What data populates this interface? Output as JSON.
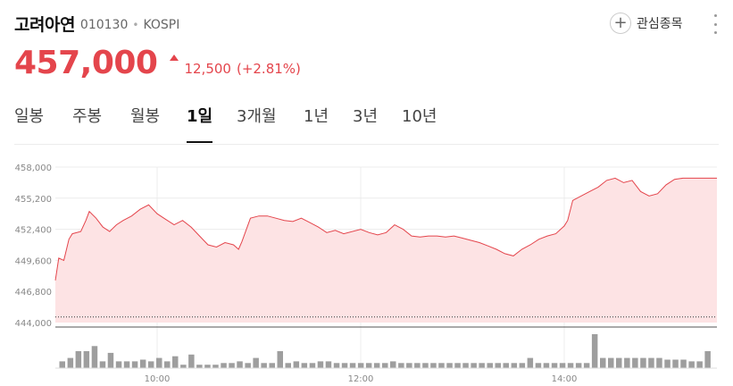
{
  "stock": {
    "name": "고려아연",
    "code": "010130",
    "separator": "•",
    "market": "KOSPI"
  },
  "watch": {
    "icon": "plus-icon",
    "label": "관심종목"
  },
  "quote": {
    "price": "457,000",
    "change": "12,500",
    "change_pct": "(+2.81%)",
    "direction": "up",
    "color": "#e4454c"
  },
  "tabs": [
    {
      "label": "일봉",
      "active": false
    },
    {
      "label": "주봉",
      "active": false
    },
    {
      "label": "월봉",
      "active": false
    },
    {
      "label": "1일",
      "active": true
    },
    {
      "label": "3개월",
      "active": false
    },
    {
      "label": "1년",
      "active": false
    },
    {
      "label": "3년",
      "active": false
    },
    {
      "label": "10년",
      "active": false
    }
  ],
  "chart_data": {
    "type": "area",
    "y_tick_labels": [
      "458,000",
      "455,200",
      "452,400",
      "449,600",
      "446,800",
      "444,000"
    ],
    "x_tick_labels": [
      "10:00",
      "12:00",
      "14:00"
    ],
    "ylim": [
      444000,
      458000
    ],
    "x_range": [
      "09:00",
      "15:30"
    ],
    "line_color": "#e4454c",
    "fill_color": "#fde3e4",
    "reference_line": 444500,
    "price_points": [
      [
        "09:00",
        447800
      ],
      [
        "09:02",
        449800
      ],
      [
        "09:05",
        449600
      ],
      [
        "09:08",
        451500
      ],
      [
        "09:10",
        452000
      ],
      [
        "09:15",
        452200
      ],
      [
        "09:18",
        453200
      ],
      [
        "09:20",
        454000
      ],
      [
        "09:24",
        453400
      ],
      [
        "09:28",
        452600
      ],
      [
        "09:32",
        452200
      ],
      [
        "09:36",
        452800
      ],
      [
        "09:40",
        453200
      ],
      [
        "09:45",
        453600
      ],
      [
        "09:50",
        454200
      ],
      [
        "09:55",
        454600
      ],
      [
        "10:00",
        453800
      ],
      [
        "10:05",
        453300
      ],
      [
        "10:10",
        452800
      ],
      [
        "10:15",
        453200
      ],
      [
        "10:20",
        452600
      ],
      [
        "10:25",
        451800
      ],
      [
        "10:30",
        451000
      ],
      [
        "10:35",
        450800
      ],
      [
        "10:40",
        451200
      ],
      [
        "10:45",
        451000
      ],
      [
        "10:48",
        450600
      ],
      [
        "10:50",
        451300
      ],
      [
        "10:55",
        453400
      ],
      [
        "11:00",
        453600
      ],
      [
        "11:05",
        453600
      ],
      [
        "11:10",
        453400
      ],
      [
        "11:15",
        453200
      ],
      [
        "11:20",
        453100
      ],
      [
        "11:25",
        453400
      ],
      [
        "11:30",
        453000
      ],
      [
        "11:35",
        452600
      ],
      [
        "11:40",
        452100
      ],
      [
        "11:45",
        452300
      ],
      [
        "11:50",
        452000
      ],
      [
        "12:00",
        452400
      ],
      [
        "12:05",
        452100
      ],
      [
        "12:10",
        451900
      ],
      [
        "12:15",
        452100
      ],
      [
        "12:20",
        452800
      ],
      [
        "12:25",
        452400
      ],
      [
        "12:30",
        451800
      ],
      [
        "12:35",
        451700
      ],
      [
        "12:40",
        451800
      ],
      [
        "12:45",
        451800
      ],
      [
        "12:50",
        451700
      ],
      [
        "12:55",
        451800
      ],
      [
        "13:00",
        451600
      ],
      [
        "13:05",
        451400
      ],
      [
        "13:10",
        451200
      ],
      [
        "13:15",
        450900
      ],
      [
        "13:20",
        450600
      ],
      [
        "13:25",
        450200
      ],
      [
        "13:30",
        450000
      ],
      [
        "13:35",
        450600
      ],
      [
        "13:40",
        451000
      ],
      [
        "13:45",
        451500
      ],
      [
        "13:50",
        451800
      ],
      [
        "13:55",
        452000
      ],
      [
        "14:00",
        452700
      ],
      [
        "14:02",
        453200
      ],
      [
        "14:05",
        455000
      ],
      [
        "14:10",
        455400
      ],
      [
        "14:15",
        455800
      ],
      [
        "14:20",
        456200
      ],
      [
        "14:25",
        456800
      ],
      [
        "14:30",
        457000
      ],
      [
        "14:35",
        456600
      ],
      [
        "14:40",
        456800
      ],
      [
        "14:45",
        455800
      ],
      [
        "14:50",
        455400
      ],
      [
        "14:55",
        455600
      ],
      [
        "15:00",
        456400
      ],
      [
        "15:05",
        456900
      ],
      [
        "15:10",
        457000
      ],
      [
        "15:20",
        457000
      ],
      [
        "15:30",
        457000
      ]
    ],
    "volume_bars": [
      4,
      6,
      10,
      10,
      13,
      4,
      9,
      4,
      4,
      4,
      5,
      4,
      6,
      4,
      7,
      2,
      8,
      2,
      2,
      2,
      3,
      3,
      4,
      3,
      6,
      3,
      3,
      10,
      3,
      4,
      3,
      3,
      4,
      4,
      3,
      3,
      3,
      3,
      3,
      3,
      3,
      4,
      3,
      3,
      3,
      3,
      3,
      3,
      3,
      3,
      3,
      3,
      3,
      3,
      3,
      3,
      3,
      3,
      6,
      3,
      3,
      3,
      3,
      3,
      3,
      3,
      20,
      6,
      6,
      6,
      6,
      6,
      6,
      6,
      6,
      5,
      5,
      5,
      4,
      4,
      10
    ]
  }
}
